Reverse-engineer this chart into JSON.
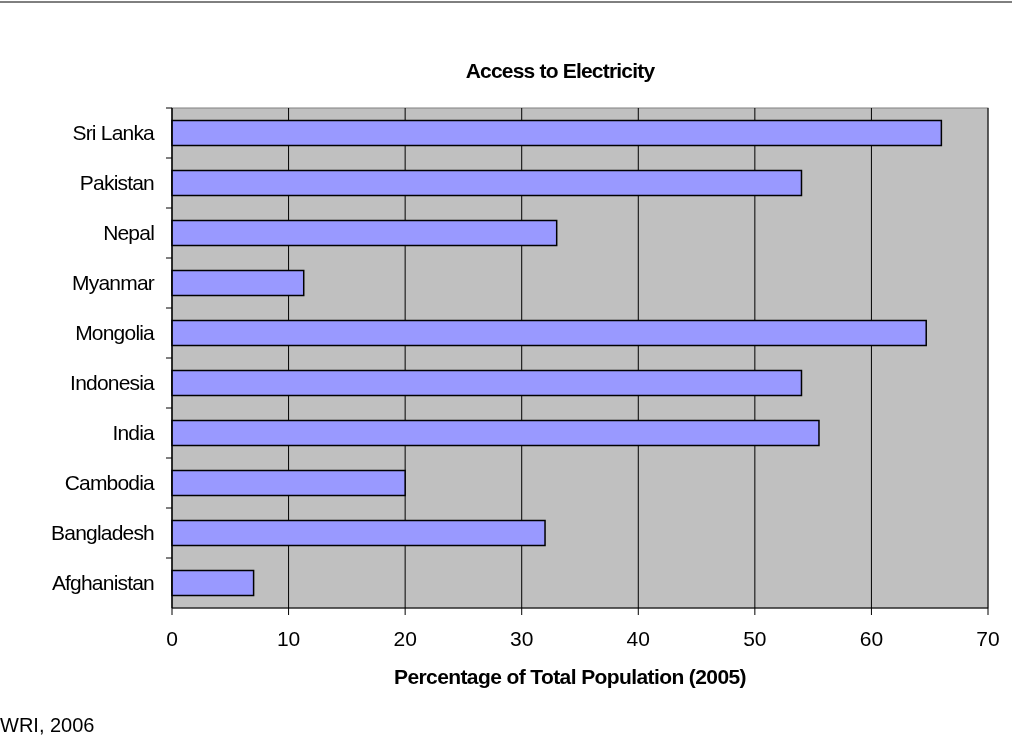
{
  "chart_data": {
    "type": "bar",
    "orientation": "horizontal",
    "title": "Access to Electricity",
    "xlabel": "Percentage of Total Population (2005)",
    "categories": [
      "Sri Lanka",
      "Pakistan",
      "Nepal",
      "Myanmar",
      "Mongolia",
      "Indonesia",
      "India",
      "Cambodia",
      "Bangladesh",
      "Afghanistan"
    ],
    "values": [
      66,
      54,
      33,
      11.3,
      64.7,
      54,
      55.5,
      20,
      32,
      7
    ],
    "color": "#9999ff",
    "xlim": [
      0,
      70
    ],
    "xticks": [
      0,
      10,
      20,
      30,
      40,
      50,
      60,
      70
    ],
    "grid": "x",
    "annotations": [
      "WRI, 2006"
    ]
  }
}
